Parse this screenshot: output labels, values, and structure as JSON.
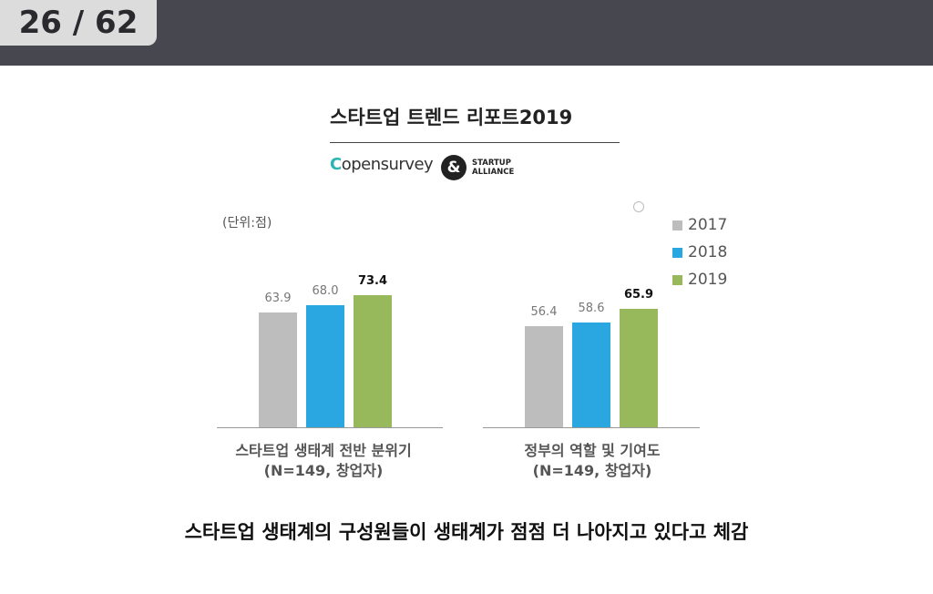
{
  "header": {
    "page_counter": "26 / 62"
  },
  "report": {
    "title": "스타트업 트렌드 리포트2019",
    "logo_opensurvey_c": "C",
    "logo_opensurvey_rest": "opensurvey",
    "logo_alliance_symbol": "&",
    "logo_alliance_line1": "STARTUP",
    "logo_alliance_line2": "ALLIANCE"
  },
  "colors": {
    "2017": "#bdbdbd",
    "2018": "#2aa6e0",
    "2019": "#97b85b"
  },
  "chart_data": {
    "type": "bar",
    "unit_label": "(단위:점)",
    "series_names": [
      "2017",
      "2018",
      "2019"
    ],
    "groups": [
      {
        "caption_line1": "스타트업 생태계 전반 분위기",
        "caption_line2": "(N=149, 창업자)",
        "values": [
          63.9,
          68.0,
          73.4
        ],
        "value_labels": [
          "63.9",
          "68.0",
          "73.4"
        ]
      },
      {
        "caption_line1": "정부의 역할 및 기여도",
        "caption_line2": "(N=149, 창업자)",
        "values": [
          56.4,
          58.6,
          65.9
        ],
        "value_labels": [
          "56.4",
          "58.6",
          "65.9"
        ]
      }
    ]
  },
  "conclusion": "스타트업 생태계의 구성원들이 생태계가 점점 더 나아지고 있다고 체감"
}
